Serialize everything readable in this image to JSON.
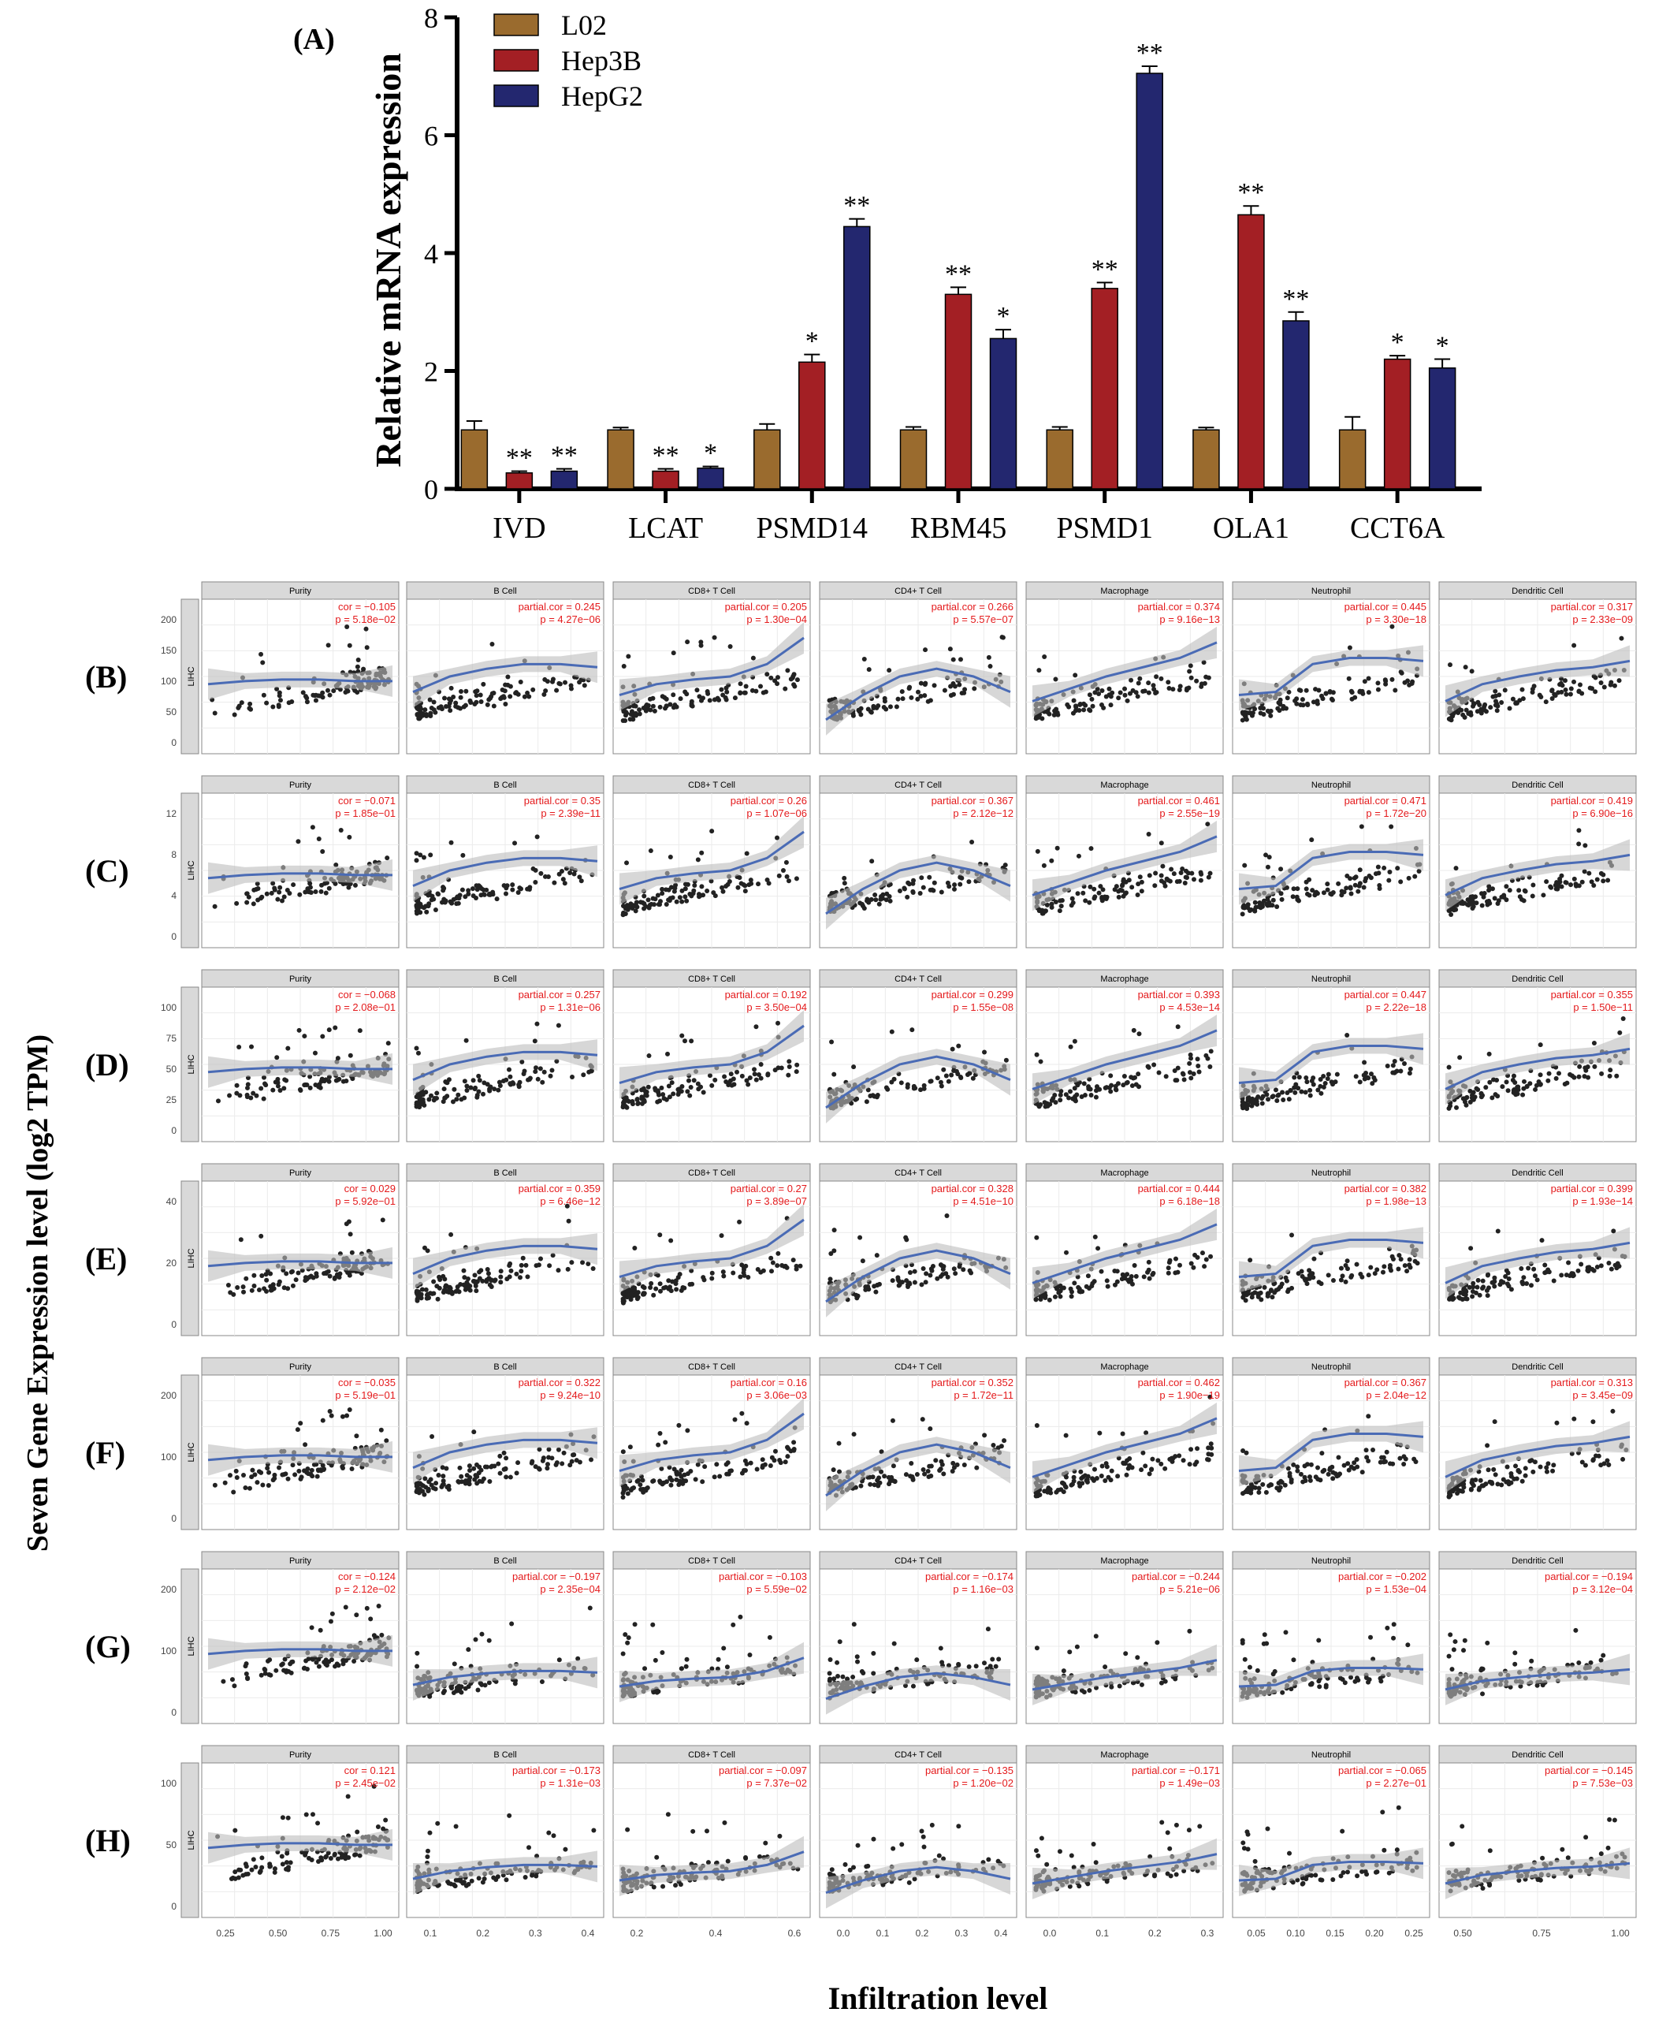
{
  "panel_a": {
    "label": "(A)",
    "chart_data": {
      "type": "bar",
      "title": "",
      "xlabel": "",
      "ylabel": "Relative mRNA expression",
      "ylim": [
        0,
        8
      ],
      "yticks": [
        "0",
        "2",
        "4",
        "6",
        "8"
      ],
      "categories": [
        "IVD",
        "LCAT",
        "PSMD14",
        "RBM45",
        "PSMD1",
        "OLA1",
        "CCT6A"
      ],
      "series": [
        {
          "name": "L02",
          "color": "#9a6b2e",
          "values": [
            1.0,
            1.0,
            1.0,
            1.0,
            1.0,
            1.0,
            1.0
          ],
          "errors": [
            0.15,
            0.04,
            0.1,
            0.05,
            0.05,
            0.04,
            0.22
          ],
          "sig": [
            "",
            "",
            "",
            "",
            "",
            "",
            ""
          ]
        },
        {
          "name": "Hep3B",
          "color": "#a31f24",
          "values": [
            0.27,
            0.3,
            2.15,
            3.3,
            3.4,
            4.65,
            2.2
          ],
          "errors": [
            0.03,
            0.04,
            0.13,
            0.12,
            0.1,
            0.15,
            0.06
          ],
          "sig": [
            "**",
            "**",
            "*",
            "**",
            "**",
            "**",
            "*"
          ]
        },
        {
          "name": "HepG2",
          "color": "#23276f",
          "values": [
            0.3,
            0.35,
            4.45,
            2.55,
            7.05,
            2.85,
            2.05
          ],
          "errors": [
            0.04,
            0.03,
            0.13,
            0.15,
            0.12,
            0.15,
            0.15
          ],
          "sig": [
            "**",
            "*",
            "**",
            "*",
            "**",
            "**",
            "*"
          ]
        }
      ],
      "legend": "top-left"
    }
  },
  "scatter_grid": {
    "y_axis_title": "Seven Gene Expression level (log2 TPM)",
    "x_axis_title": "Infiltration level",
    "strip_label": "LIHC",
    "columns": [
      "Purity",
      "B Cell",
      "CD8+ T Cell",
      "CD4+ T Cell",
      "Macrophage",
      "Neutrophil",
      "Dendritic Cell"
    ],
    "x_ticks": [
      [
        "0.25",
        "0.50",
        "0.75",
        "1.00"
      ],
      [
        "0.1",
        "0.2",
        "0.3",
        "0.4"
      ],
      [
        "0.2",
        "0.4",
        "0.6"
      ],
      [
        "0.0",
        "0.1",
        "0.2",
        "0.3",
        "0.4"
      ],
      [
        "0.0",
        "0.1",
        "0.2",
        "0.3"
      ],
      [
        "0.05",
        "0.10",
        "0.15",
        "0.20",
        "0.25"
      ],
      [
        "0.50",
        "0.75",
        "1.00"
      ]
    ],
    "rows": [
      {
        "label": "(B)",
        "yticks": [
          "0",
          "50",
          "100",
          "150",
          "200"
        ],
        "stats": [
          {
            "cor": "cor = −0.105",
            "p": "p = 5.18e−02"
          },
          {
            "cor": "partial.cor = 0.245",
            "p": "p = 4.27e−06"
          },
          {
            "cor": "partial.cor = 0.205",
            "p": "p = 1.30e−04"
          },
          {
            "cor": "partial.cor = 0.266",
            "p": "p = 5.57e−07"
          },
          {
            "cor": "partial.cor = 0.374",
            "p": "p = 9.16e−13"
          },
          {
            "cor": "partial.cor = 0.445",
            "p": "p = 3.30e−18"
          },
          {
            "cor": "partial.cor = 0.317",
            "p": "p = 2.33e−09"
          }
        ]
      },
      {
        "label": "(C)",
        "yticks": [
          "0",
          "4",
          "8",
          "12"
        ],
        "stats": [
          {
            "cor": "cor = −0.071",
            "p": "p = 1.85e−01"
          },
          {
            "cor": "partial.cor = 0.35",
            "p": "p = 2.39e−11"
          },
          {
            "cor": "partial.cor = 0.26",
            "p": "p = 1.07e−06"
          },
          {
            "cor": "partial.cor = 0.367",
            "p": "p = 2.12e−12"
          },
          {
            "cor": "partial.cor = 0.461",
            "p": "p = 2.55e−19"
          },
          {
            "cor": "partial.cor = 0.471",
            "p": "p = 1.72e−20"
          },
          {
            "cor": "partial.cor = 0.419",
            "p": "p = 6.90e−16"
          }
        ]
      },
      {
        "label": "(D)",
        "yticks": [
          "0",
          "25",
          "50",
          "75",
          "100"
        ],
        "stats": [
          {
            "cor": "cor = −0.068",
            "p": "p = 2.08e−01"
          },
          {
            "cor": "partial.cor = 0.257",
            "p": "p = 1.31e−06"
          },
          {
            "cor": "partial.cor = 0.192",
            "p": "p = 3.50e−04"
          },
          {
            "cor": "partial.cor = 0.299",
            "p": "p = 1.55e−08"
          },
          {
            "cor": "partial.cor = 0.393",
            "p": "p = 4.53e−14"
          },
          {
            "cor": "partial.cor = 0.447",
            "p": "p = 2.22e−18"
          },
          {
            "cor": "partial.cor = 0.355",
            "p": "p = 1.50e−11"
          }
        ]
      },
      {
        "label": "(E)",
        "yticks": [
          "0",
          "20",
          "40"
        ],
        "stats": [
          {
            "cor": "cor = 0.029",
            "p": "p = 5.92e−01"
          },
          {
            "cor": "partial.cor = 0.359",
            "p": "p = 6.46e−12"
          },
          {
            "cor": "partial.cor = 0.27",
            "p": "p = 3.89e−07"
          },
          {
            "cor": "partial.cor = 0.328",
            "p": "p = 4.51e−10"
          },
          {
            "cor": "partial.cor = 0.444",
            "p": "p = 6.18e−18"
          },
          {
            "cor": "partial.cor = 0.382",
            "p": "p = 1.98e−13"
          },
          {
            "cor": "partial.cor = 0.399",
            "p": "p = 1.93e−14"
          }
        ]
      },
      {
        "label": "(F)",
        "yticks": [
          "0",
          "100",
          "200"
        ],
        "stats": [
          {
            "cor": "cor = −0.035",
            "p": "p = 5.19e−01"
          },
          {
            "cor": "partial.cor = 0.322",
            "p": "p = 9.24e−10"
          },
          {
            "cor": "partial.cor = 0.16",
            "p": "p = 3.06e−03"
          },
          {
            "cor": "partial.cor = 0.352",
            "p": "p = 1.72e−11"
          },
          {
            "cor": "partial.cor = 0.462",
            "p": "p = 1.90e−19"
          },
          {
            "cor": "partial.cor = 0.367",
            "p": "p = 2.04e−12"
          },
          {
            "cor": "partial.cor = 0.313",
            "p": "p = 3.45e−09"
          }
        ]
      },
      {
        "label": "(G)",
        "yticks": [
          "0",
          "100",
          "200"
        ],
        "stats": [
          {
            "cor": "cor = −0.124",
            "p": "p = 2.12e−02"
          },
          {
            "cor": "partial.cor = −0.197",
            "p": "p = 2.35e−04"
          },
          {
            "cor": "partial.cor = −0.103",
            "p": "p = 5.59e−02"
          },
          {
            "cor": "partial.cor = −0.174",
            "p": "p = 1.16e−03"
          },
          {
            "cor": "partial.cor = −0.244",
            "p": "p = 5.21e−06"
          },
          {
            "cor": "partial.cor = −0.202",
            "p": "p = 1.53e−04"
          },
          {
            "cor": "partial.cor = −0.194",
            "p": "p = 3.12e−04"
          }
        ]
      },
      {
        "label": "(H)",
        "yticks": [
          "0",
          "50",
          "100"
        ],
        "stats": [
          {
            "cor": "cor = 0.121",
            "p": "p = 2.45e−02"
          },
          {
            "cor": "partial.cor = −0.173",
            "p": "p = 1.31e−03"
          },
          {
            "cor": "partial.cor = −0.097",
            "p": "p = 7.37e−02"
          },
          {
            "cor": "partial.cor = −0.135",
            "p": "p = 1.20e−02"
          },
          {
            "cor": "partial.cor = −0.171",
            "p": "p = 1.49e−03"
          },
          {
            "cor": "partial.cor = −0.065",
            "p": "p = 2.27e−01"
          },
          {
            "cor": "partial.cor = −0.145",
            "p": "p = 7.53e−03"
          }
        ]
      }
    ],
    "colors": {
      "point": "#222222",
      "trend": "#4a6bb5",
      "band": "#bdbdbd",
      "strip": "#d9d9d9",
      "stat_text": "#e41a1c",
      "grid": "#ebebeb"
    }
  }
}
